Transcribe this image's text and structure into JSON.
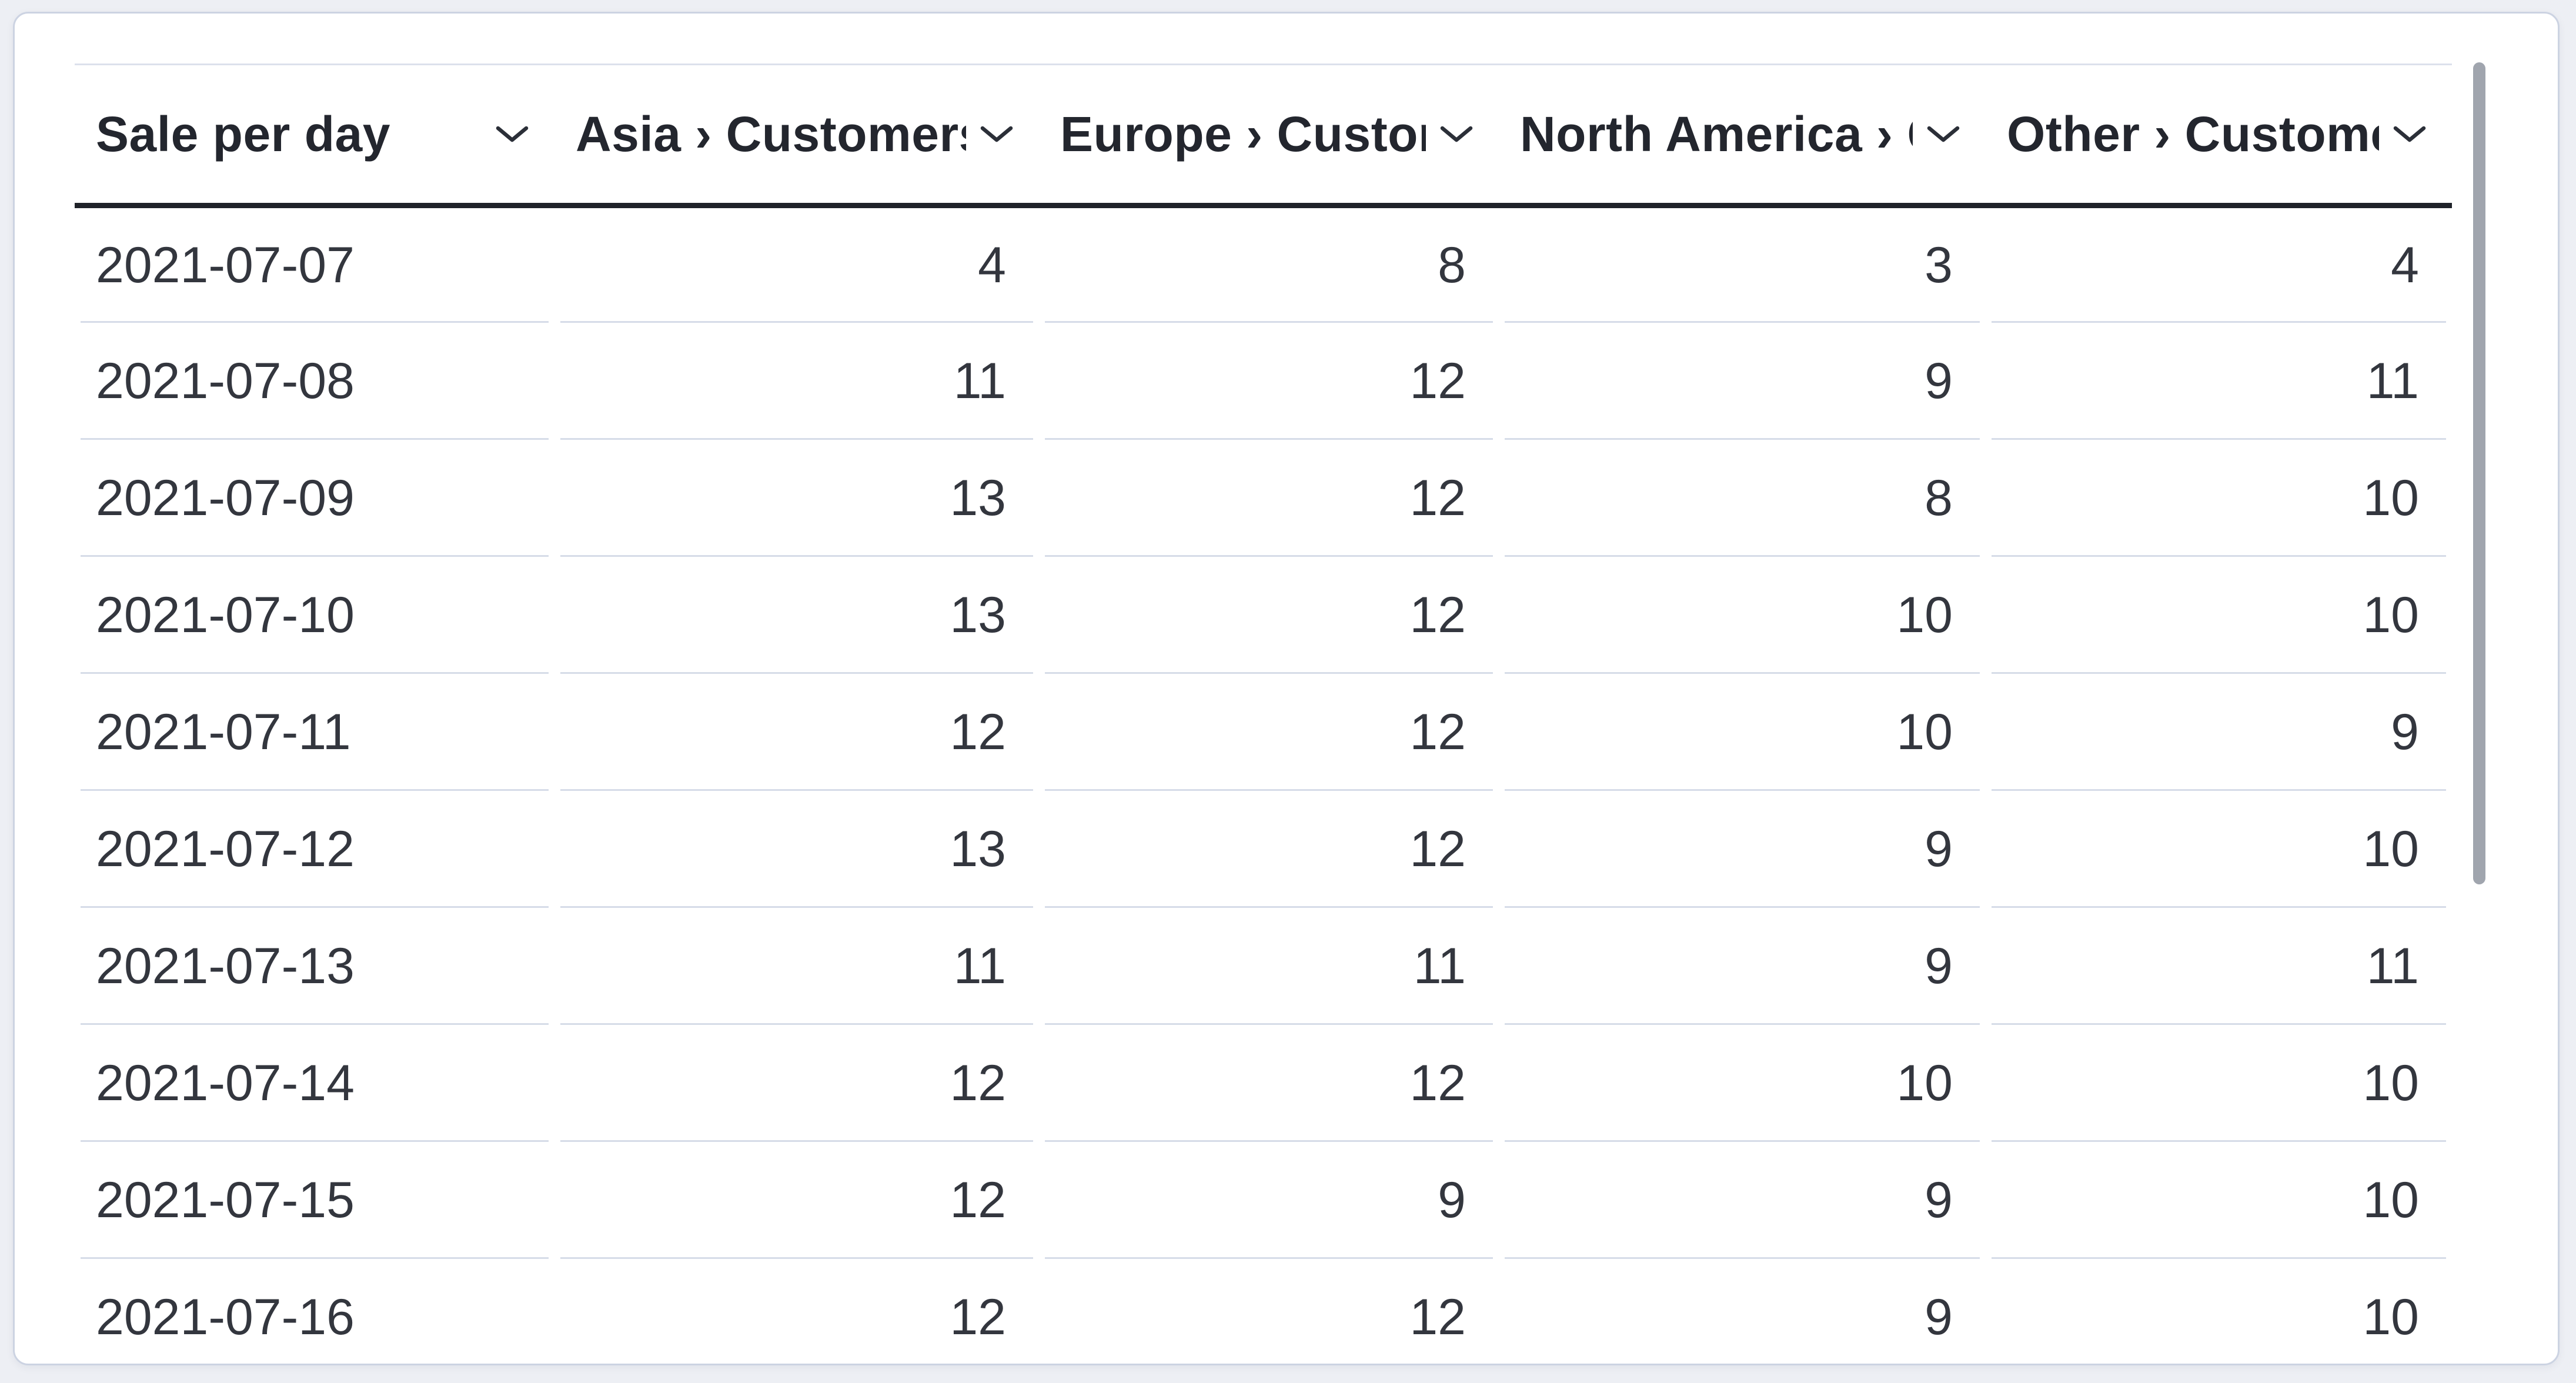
{
  "table": {
    "columns": [
      {
        "label": "Sale per day",
        "align": "left"
      },
      {
        "label": "Asia › Customers",
        "align": "right"
      },
      {
        "label": "Europe › Customers",
        "align": "right"
      },
      {
        "label": "North America › Customers",
        "align": "right"
      },
      {
        "label": "Other › Customers",
        "align": "right"
      }
    ],
    "rows": [
      [
        "2021-07-07",
        "4",
        "8",
        "3",
        "4"
      ],
      [
        "2021-07-08",
        "11",
        "12",
        "9",
        "11"
      ],
      [
        "2021-07-09",
        "13",
        "12",
        "8",
        "10"
      ],
      [
        "2021-07-10",
        "13",
        "12",
        "10",
        "10"
      ],
      [
        "2021-07-11",
        "12",
        "12",
        "10",
        "9"
      ],
      [
        "2021-07-12",
        "13",
        "12",
        "9",
        "10"
      ],
      [
        "2021-07-13",
        "11",
        "11",
        "9",
        "11"
      ],
      [
        "2021-07-14",
        "12",
        "12",
        "10",
        "10"
      ],
      [
        "2021-07-15",
        "12",
        "9",
        "9",
        "10"
      ],
      [
        "2021-07-16",
        "12",
        "12",
        "9",
        "10"
      ]
    ]
  },
  "chart_data": {
    "type": "table",
    "title": "Sale per day",
    "categories": [
      "2021-07-07",
      "2021-07-08",
      "2021-07-09",
      "2021-07-10",
      "2021-07-11",
      "2021-07-12",
      "2021-07-13",
      "2021-07-14",
      "2021-07-15",
      "2021-07-16"
    ],
    "series": [
      {
        "name": "Asia › Customers",
        "values": [
          4,
          11,
          13,
          13,
          12,
          13,
          11,
          12,
          12,
          12
        ]
      },
      {
        "name": "Europe › Customers",
        "values": [
          8,
          12,
          12,
          12,
          12,
          12,
          11,
          12,
          9,
          12
        ]
      },
      {
        "name": "North America › Customers",
        "values": [
          3,
          9,
          8,
          10,
          10,
          9,
          9,
          10,
          9,
          9
        ]
      },
      {
        "name": "Other › Customers",
        "values": [
          4,
          11,
          10,
          10,
          9,
          10,
          11,
          10,
          10,
          10
        ]
      }
    ]
  },
  "icons": {
    "header_sort": "chevron-down-icon"
  },
  "colors": {
    "page_background": "#edeff4",
    "card_background": "#ffffff",
    "card_border": "#ccd3e2",
    "header_text": "#23262e",
    "header_rule": "#1f2229",
    "cell_text": "#33363e",
    "row_separator": "#d6dce8",
    "scrollbar_thumb": "#a0a5ae"
  }
}
